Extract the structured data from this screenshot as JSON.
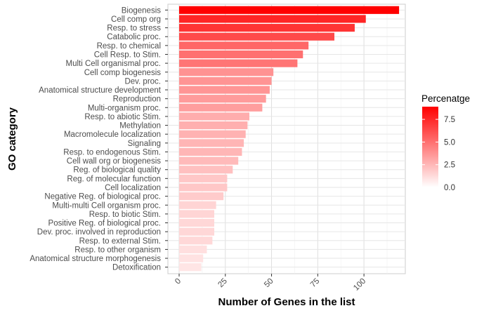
{
  "chart_data": {
    "type": "bar",
    "orientation": "horizontal",
    "xlabel": "Number of Genes in the list",
    "ylabel": "GO category",
    "xlim": [
      0,
      122
    ],
    "xticks": [
      0,
      25,
      50,
      75,
      100
    ],
    "grid": true,
    "legend": {
      "title": "Percenatge",
      "position": "right",
      "ticks": [
        0.0,
        2.5,
        5.0,
        7.5
      ],
      "tick_labels": [
        "0.0",
        "2.5",
        "5.0",
        "7.5"
      ],
      "range": [
        0,
        8.9
      ],
      "color_low": "#ffffff",
      "color_high": "#ff0000"
    },
    "categories": [
      "Biogenesis",
      "Cell comp org",
      "Resp. to stress",
      "Catabolic proc.",
      "Resp. to chemical",
      "Cell Resp. to Stim.",
      "Multi Cell organismal proc.",
      "Cell comp biogenesis",
      "Dev. proc.",
      "Anatomical structure development",
      "Reproduction",
      "Multi-organism proc.",
      "Resp. to abiotic Stim.",
      "Methylation",
      "Macromolecule localization",
      "Signaling",
      "Resp. to endogenous Stim.",
      "Cell wall org or biogenesis",
      "Reg. of biological quality",
      "Reg. of molecular function",
      "Cell localization",
      "Negative Reg. of biological proc.",
      "Multi-multi Cell organism proc.",
      "Resp. to biotic Stim.",
      "Positive Reg. of biological proc.",
      "Dev. proc. involved in reproduction",
      "Resp. to external Stim.",
      "Resp. to other organism",
      "Anatomical structure morphogenesis",
      "Detoxification"
    ],
    "values": [
      119,
      101,
      95,
      84,
      70,
      67,
      64,
      51,
      50,
      49,
      47,
      45,
      38,
      37,
      36,
      35,
      34,
      32,
      29,
      26,
      26,
      24,
      20,
      19,
      19,
      19,
      18,
      15,
      13,
      12
    ],
    "percentages": [
      8.9,
      7.6,
      7.1,
      6.3,
      5.3,
      5.0,
      4.8,
      3.8,
      3.75,
      3.7,
      3.5,
      3.4,
      2.85,
      2.8,
      2.7,
      2.6,
      2.55,
      2.4,
      2.2,
      1.95,
      1.95,
      1.8,
      1.5,
      1.45,
      1.4,
      1.4,
      1.35,
      1.1,
      1.0,
      0.9
    ]
  }
}
